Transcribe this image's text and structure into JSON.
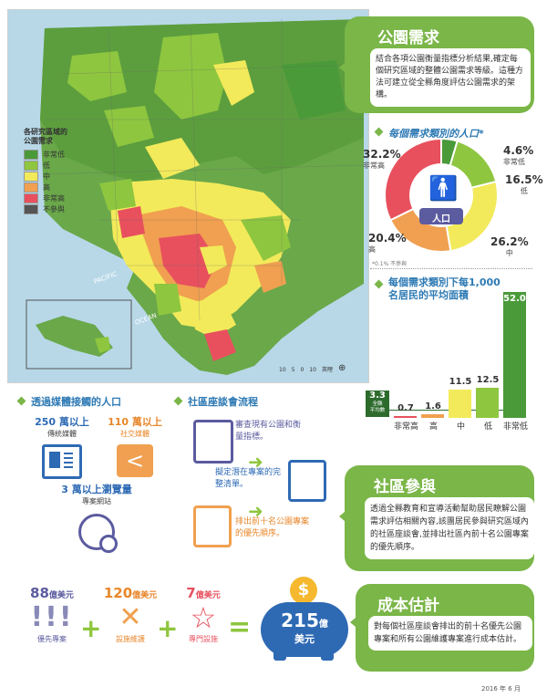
{
  "map": {
    "legend_title": "各研究區域的\n公園需求",
    "legend": [
      {
        "label": "非常低",
        "color": "#4a9a3a"
      },
      {
        "label": "低",
        "color": "#8ec63f"
      },
      {
        "label": "中",
        "color": "#f2ea5a"
      },
      {
        "label": "高",
        "color": "#f0a050"
      },
      {
        "label": "非常高",
        "color": "#e8505e"
      },
      {
        "label": "不參與",
        "color": "#555555"
      }
    ],
    "ocean_labels": [
      "PACIFIC",
      "OCEAN"
    ],
    "scale_numbers": [
      "10",
      "5",
      "0",
      "10"
    ],
    "scale_unit": "英哩"
  },
  "park_needs": {
    "title": "公園需求",
    "body": "結合各項公園衡量指標分析結果,確定每個研究區域的整體公園需求等級。這種方法可建立從全縣角度評估公園需求的架構。"
  },
  "population": {
    "title": "每個需求類別的人口*",
    "center_label": "人口",
    "footnote": "*0.1% 不參與",
    "slices": [
      {
        "pct": "32.2%",
        "label": "非常高",
        "value": 32.2,
        "color": "#e8505e"
      },
      {
        "pct": "4.6%",
        "label": "非常低",
        "value": 4.6,
        "color": "#4a9a3a"
      },
      {
        "pct": "16.5%",
        "label": "低",
        "value": 16.5,
        "color": "#8ec63f"
      },
      {
        "pct": "26.2%",
        "label": "中",
        "value": 26.2,
        "color": "#f2ea5a"
      },
      {
        "pct": "20.4%",
        "label": "高",
        "value": 20.4,
        "color": "#f0a050"
      }
    ]
  },
  "acreage": {
    "title": "每個需求類別下每1,000 名居民的平均面積",
    "overall_value": "3.3",
    "overall_label": "全縣\n平均數"
  },
  "chart_data": {
    "type": "bar",
    "title": "每個需求類別下每1,000 名居民的平均面積",
    "categories": [
      "非常高",
      "高",
      "中",
      "低",
      "非常低"
    ],
    "values": [
      0.7,
      1.6,
      11.5,
      12.5,
      52.0
    ],
    "value_labels": [
      "0.7",
      "1.6",
      "11.5",
      "12.5",
      "52.0"
    ],
    "colors": [
      "#e8505e",
      "#f0a050",
      "#f2ea5a",
      "#8ec63f",
      "#4a9a3a"
    ],
    "reference_line": 3.3,
    "ylim": [
      0,
      52
    ]
  },
  "outreach": {
    "title": "透過媒體接觸的人口",
    "traditional_value": "250 萬以上",
    "traditional_label": "傳統媒體",
    "social_value": "110 萬以上",
    "social_label": "社交媒體",
    "web_value": "3 萬以上瀏覽量",
    "web_label": "專案網站"
  },
  "process": {
    "title": "社區座談會流程",
    "steps": [
      "審查現有公園和衡量指標。",
      "擬定潛在專案的完整清單。",
      "排出前十名公園專案的優先順序。"
    ]
  },
  "engagement": {
    "title": "社區參與",
    "body": "透過全縣教育和宣導活動幫助居民瞭解公園需求評估相關內容,該團居民參與研究區域內的社區座談會,並排出社區內前十名公園專案的優先順序。"
  },
  "cost_eq": {
    "priority_value": "88",
    "priority_unit": "億美元",
    "priority_label": "優先專案",
    "maintenance_value": "120",
    "maintenance_unit": "億美元",
    "maintenance_label": "設施維護",
    "specialized_value": "7",
    "specialized_unit": "億美元",
    "specialized_label": "專門設施",
    "total_value": "215",
    "total_unit": "億",
    "total_currency": "美元",
    "plus": "+",
    "equals": "="
  },
  "cost": {
    "title": "成本估計",
    "body": "對每個社區座談會排出的前十名優先公園專案和所有公園維護專案進行成本估計。"
  },
  "date": "2016 年 6 月"
}
